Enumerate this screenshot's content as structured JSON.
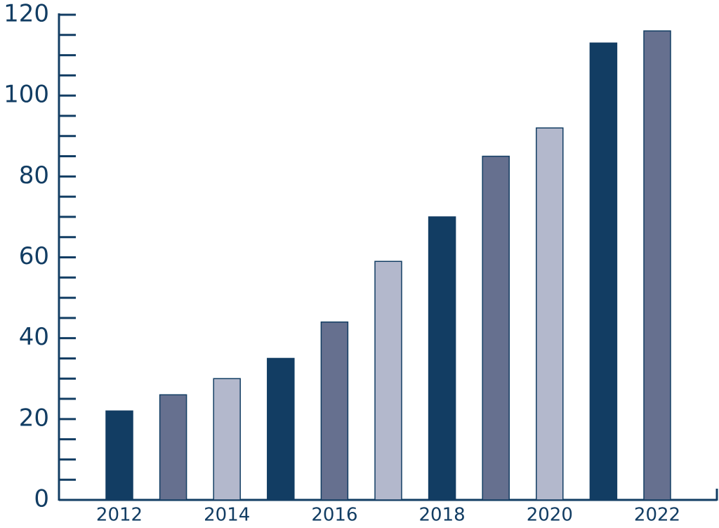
{
  "chart_data": {
    "type": "bar",
    "categories": [
      "2012",
      null,
      "2014",
      null,
      "2016",
      null,
      "2018",
      null,
      "2020",
      null,
      "2022"
    ],
    "values": [
      22,
      26,
      30,
      35,
      44,
      59,
      70,
      85,
      92,
      113,
      116
    ],
    "colors": [
      "#123d63",
      "#66708f",
      "#b3b8cc",
      "#123d63",
      "#66708f",
      "#b3b8cc",
      "#123d63",
      "#66708f",
      "#b3b8cc",
      "#123d63",
      "#66708f"
    ],
    "ylim": [
      0,
      120
    ],
    "yticks": [
      0,
      20,
      40,
      60,
      80,
      100,
      120
    ],
    "yminorticks": [
      5,
      10,
      15,
      25,
      30,
      35,
      45,
      50,
      55,
      65,
      70,
      75,
      85,
      90,
      95,
      105,
      110,
      115
    ],
    "grid": false
  }
}
